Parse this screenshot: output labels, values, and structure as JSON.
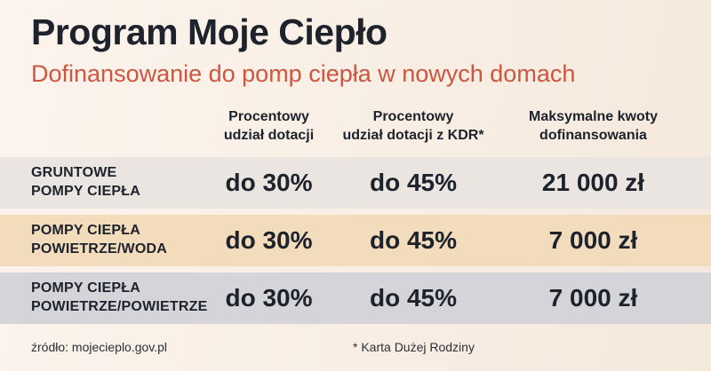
{
  "header": {
    "title": "Program Moje Ciepło",
    "subtitle": "Dofinansowanie do pomp ciepła w nowych domach"
  },
  "chart_data": {
    "type": "table",
    "title": "Program Moje Ciepło",
    "subtitle": "Dofinansowanie do pomp ciepła w nowych domach",
    "columns": [
      "Procentowy udział dotacji",
      "Procentowy udział dotacji z KDR*",
      "Maksymalne kwoty dofinansowania"
    ],
    "rows": [
      [
        "GRUNTOWE POMPY CIEPŁA",
        "do 30%",
        "do 45%",
        "21 000 zł"
      ],
      [
        "POMPY CIEPŁA POWIETRZE/WODA",
        "do 30%",
        "do 45%",
        "7 000 zł"
      ],
      [
        "POMPY CIEPŁA POWIETRZE/POWIETRZE",
        "do 30%",
        "do 45%",
        "7 000 zł"
      ]
    ],
    "footnote": "* Karta Dużej Rodziny",
    "source": "źródło: mojecieplo.gov.pl"
  },
  "table": {
    "columns": [
      "Procentowy\nudział dotacji",
      "Procentowy\nudział dotacji z KDR*",
      "Maksymalne kwoty\ndofinansowania"
    ],
    "rows": [
      {
        "label": "GRUNTOWE\nPOMPY CIEPŁA",
        "dotacja": "do 30%",
        "dotacja_kdr": "do 45%",
        "kwota": "21 000 zł"
      },
      {
        "label": "POMPY CIEPŁA\nPOWIETRZE/WODA",
        "dotacja": "do 30%",
        "dotacja_kdr": "do 45%",
        "kwota": "7 000 zł"
      },
      {
        "label": "POMPY CIEPŁA\nPOWIETRZE/POWIETRZE",
        "dotacja": "do 30%",
        "dotacja_kdr": "do 45%",
        "kwota": "7 000 zł"
      }
    ]
  },
  "footer": {
    "source": "źródło: mojecieplo.gov.pl",
    "footnote": "* Karta Dużej Rodziny"
  },
  "colors": {
    "title_color": "#1d222c",
    "accent": "#ce5540",
    "text": "#232833",
    "bg_left": "#fcf4ed",
    "bg_right": "#f5e9dc",
    "row1": "#eae5e0",
    "row2": "#f2dcbc",
    "row3": "#d5d4d8"
  }
}
